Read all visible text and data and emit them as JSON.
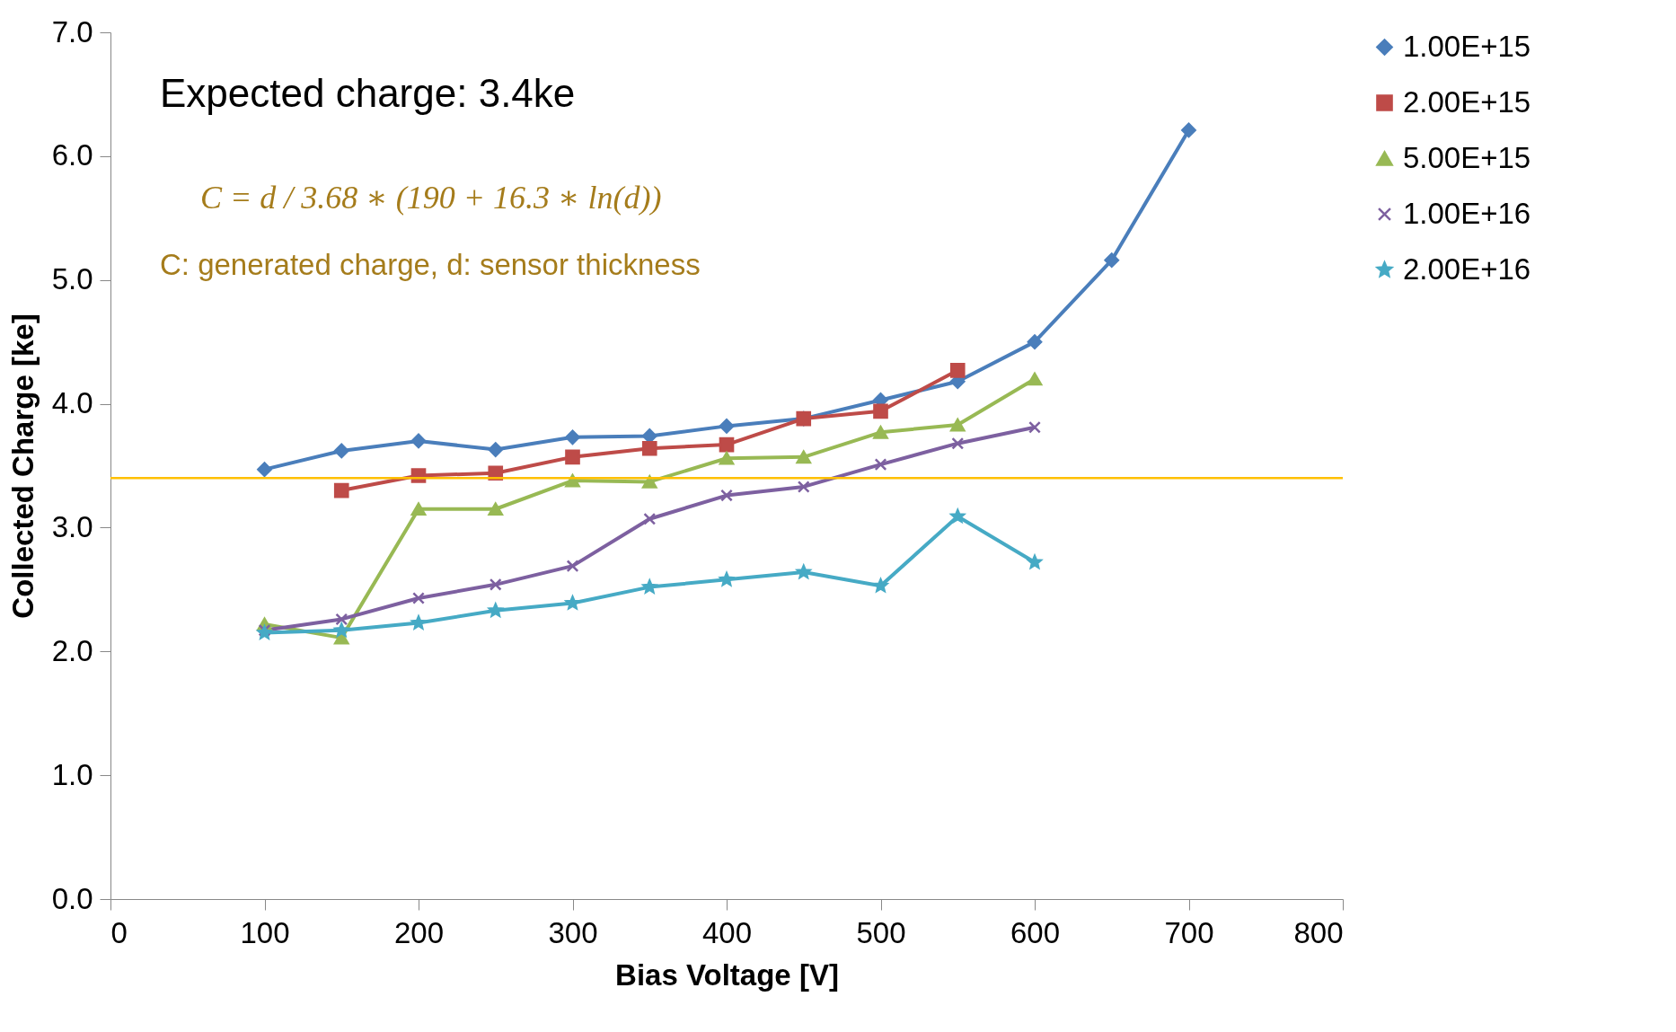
{
  "chart_data": {
    "type": "line",
    "xlabel": "Bias Voltage [V]",
    "ylabel": "Collected Charge [ke]",
    "annotations": [
      "Expected charge: 3.4ke",
      "C = d / 3.68 ∗ (190 + 16.3 ∗ ln(d))",
      "C: generated charge, d: sensor thickness"
    ],
    "x": [
      100,
      150,
      200,
      250,
      300,
      350,
      400,
      450,
      500,
      550,
      600,
      650,
      700
    ],
    "series": [
      {
        "name": "1.00E+15",
        "color": "#4a7ebb",
        "marker": "diamond",
        "values": [
          3.47,
          3.62,
          3.7,
          3.63,
          3.73,
          3.74,
          3.82,
          3.88,
          4.03,
          4.18,
          4.5,
          5.16,
          6.21
        ]
      },
      {
        "name": "2.00E+15",
        "color": "#be4b48",
        "marker": "square",
        "values": [
          null,
          3.3,
          3.42,
          3.44,
          3.57,
          3.64,
          3.67,
          3.88,
          3.94,
          4.27,
          null,
          null,
          null
        ]
      },
      {
        "name": "5.00E+15",
        "color": "#98b954",
        "marker": "triangle",
        "values": [
          2.22,
          2.11,
          3.15,
          3.15,
          3.38,
          3.37,
          3.56,
          3.57,
          3.77,
          3.83,
          4.2,
          null,
          null
        ]
      },
      {
        "name": "1.00E+16",
        "color": "#7d60a0",
        "marker": "cross",
        "values": [
          2.17,
          2.26,
          2.43,
          2.54,
          2.69,
          3.07,
          3.26,
          3.33,
          3.51,
          3.68,
          3.81,
          null,
          null
        ]
      },
      {
        "name": "2.00E+16",
        "color": "#46aac5",
        "marker": "star",
        "values": [
          2.15,
          2.17,
          2.23,
          2.33,
          2.39,
          2.52,
          2.58,
          2.64,
          2.53,
          3.09,
          2.72,
          null,
          null
        ]
      }
    ],
    "xlim": [
      0,
      800
    ],
    "xticks": [
      0,
      100,
      200,
      300,
      400,
      500,
      600,
      700,
      800
    ],
    "ylim": [
      0,
      7
    ],
    "yticks": [
      {
        "value": 0,
        "label": "0.0"
      },
      {
        "value": 1,
        "label": "1.0"
      },
      {
        "value": 2,
        "label": "2.0"
      },
      {
        "value": 3,
        "label": "3.0"
      },
      {
        "value": 4,
        "label": "4.0"
      },
      {
        "value": 5,
        "label": "5.0"
      },
      {
        "value": 6,
        "label": "6.0"
      },
      {
        "value": 7,
        "label": "7.0"
      }
    ],
    "ref_lines": [
      {
        "axis": "y",
        "value": 3.4,
        "color": "#ffc000"
      }
    ],
    "grid": false,
    "legend": "right"
  }
}
